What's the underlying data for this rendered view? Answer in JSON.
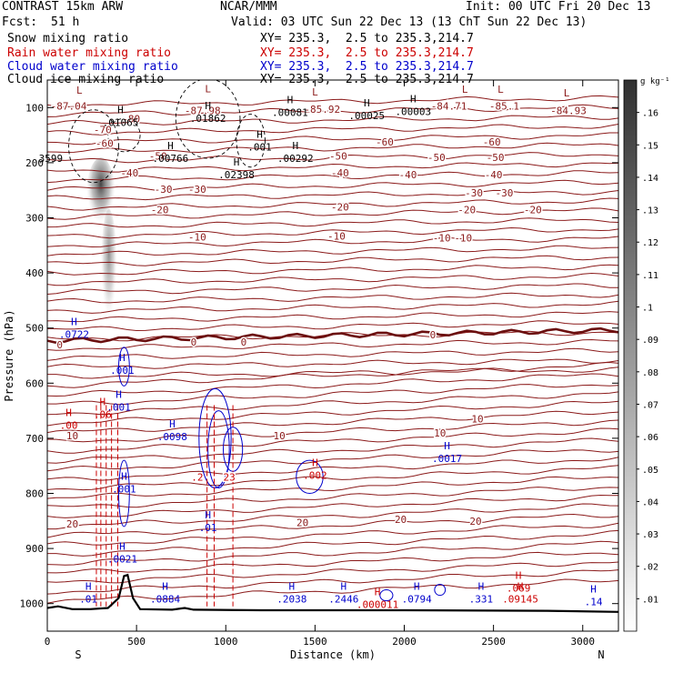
{
  "header": {
    "model": "CONTRAST 15km ARW",
    "center": "NCAR/MMM",
    "init": "Init: 00 UTC Fri 20 Dec 13",
    "fcst_label": "Fcst:",
    "fcst_value": "51 h",
    "valid": "Valid: 03 UTC Sun 22 Dec 13 (13 ChT Sun 22 Dec 13)",
    "fields": [
      {
        "name": "Snow mixing ratio",
        "color": "#000000",
        "xy": "XY= 235.3,  2.5 to 235.3,214.7"
      },
      {
        "name": "Rain water mixing ratio",
        "color": "#cc0000",
        "xy": "XY= 235.3,  2.5 to 235.3,214.7"
      },
      {
        "name": "Cloud water mixing ratio",
        "color": "#0000cc",
        "xy": "XY= 235.3,  2.5 to 235.3,214.7"
      },
      {
        "name": "Cloud ice mixing ratio",
        "color": "#000000",
        "xy": "XY= 235.3,  2.5 to 235.3,214.7"
      }
    ]
  },
  "chart_data": {
    "type": "cross-section contour",
    "xlabel": "Distance (km)",
    "ylabel": "Pressure (hPa)",
    "xlim": [
      0,
      3200
    ],
    "ylim": [
      1050,
      50
    ],
    "x_ticks": [
      0,
      500,
      1000,
      1500,
      2000,
      2500,
      3000
    ],
    "y_ticks": [
      100,
      200,
      300,
      400,
      500,
      600,
      700,
      800,
      900,
      1000
    ],
    "x_end_labels": {
      "left": "S",
      "right": "N"
    },
    "colorbar": {
      "unit": "g kg⁻¹",
      "ticks": [
        ".01",
        ".02",
        ".03",
        ".04",
        ".05",
        ".06",
        ".07",
        ".08",
        ".09",
        ".1",
        ".11",
        ".12",
        ".13",
        ".14",
        ".15",
        ".16"
      ],
      "min": 0,
      "max": 0.17
    },
    "temperature_contours": [
      {
        "label": "-80",
        "p": 112
      },
      {
        "label": "-60",
        "p": 160
      },
      {
        "label": "-50",
        "p": 185
      },
      {
        "label": "-40",
        "p": 210
      },
      {
        "label": "-30",
        "p": 238
      },
      {
        "label": "-20",
        "p": 275
      },
      {
        "label": "-10",
        "p": 330
      },
      {
        "label": "0",
        "p": 523
      },
      {
        "label": "10",
        "p": 715
      },
      {
        "label": "20",
        "p": 852
      }
    ],
    "contour_labels": [
      {
        "text": "-87.04",
        "x": 120,
        "p": 97,
        "color": "#8b1a1a"
      },
      {
        "text": "-80",
        "x": 470,
        "p": 120,
        "color": "#8b1a1a"
      },
      {
        "text": "-87.98",
        "x": 870,
        "p": 105,
        "color": "#8b1a1a"
      },
      {
        "text": "-85.92",
        "x": 1540,
        "p": 103,
        "color": "#8b1a1a"
      },
      {
        "text": "-84.71",
        "x": 2250,
        "p": 97,
        "color": "#8b1a1a"
      },
      {
        "text": "-85.1",
        "x": 2560,
        "p": 97,
        "color": "#8b1a1a"
      },
      {
        "text": "-84.93",
        "x": 2920,
        "p": 105,
        "color": "#8b1a1a"
      },
      {
        "text": "-70",
        "x": 310,
        "p": 140,
        "color": "#8b1a1a"
      },
      {
        "text": "-60",
        "x": 320,
        "p": 165,
        "color": "#8b1a1a"
      },
      {
        "text": "-60",
        "x": 1890,
        "p": 162,
        "color": "#8b1a1a"
      },
      {
        "text": "-60",
        "x": 2490,
        "p": 162,
        "color": "#8b1a1a"
      },
      {
        "text": "-50",
        "x": 620,
        "p": 188,
        "color": "#8b1a1a"
      },
      {
        "text": "-50",
        "x": 1630,
        "p": 188,
        "color": "#8b1a1a"
      },
      {
        "text": "-50",
        "x": 2180,
        "p": 190,
        "color": "#8b1a1a"
      },
      {
        "text": "-50",
        "x": 2510,
        "p": 190,
        "color": "#8b1a1a"
      },
      {
        "text": "-40",
        "x": 460,
        "p": 218,
        "color": "#8b1a1a"
      },
      {
        "text": "-40",
        "x": 1640,
        "p": 218,
        "color": "#8b1a1a"
      },
      {
        "text": "-40",
        "x": 2020,
        "p": 222,
        "color": "#8b1a1a"
      },
      {
        "text": "-40",
        "x": 2500,
        "p": 222,
        "color": "#8b1a1a"
      },
      {
        "text": "-30",
        "x": 650,
        "p": 248,
        "color": "#8b1a1a"
      },
      {
        "text": "-30",
        "x": 840,
        "p": 248,
        "color": "#8b1a1a"
      },
      {
        "text": "-30",
        "x": 2390,
        "p": 255,
        "color": "#8b1a1a"
      },
      {
        "text": "-30",
        "x": 2560,
        "p": 255,
        "color": "#8b1a1a"
      },
      {
        "text": "-20",
        "x": 630,
        "p": 285,
        "color": "#8b1a1a"
      },
      {
        "text": "-20",
        "x": 1640,
        "p": 280,
        "color": "#8b1a1a"
      },
      {
        "text": "-20",
        "x": 2350,
        "p": 285,
        "color": "#8b1a1a"
      },
      {
        "text": "-20",
        "x": 2720,
        "p": 285,
        "color": "#8b1a1a"
      },
      {
        "text": "-10",
        "x": 840,
        "p": 335,
        "color": "#8b1a1a"
      },
      {
        "text": "-10",
        "x": 1620,
        "p": 333,
        "color": "#8b1a1a"
      },
      {
        "text": "-10",
        "x": 2210,
        "p": 336,
        "color": "#8b1a1a"
      },
      {
        "text": "-10",
        "x": 2330,
        "p": 336,
        "color": "#8b1a1a"
      },
      {
        "text": "0",
        "x": 70,
        "p": 530,
        "color": "#8b1a1a"
      },
      {
        "text": "0",
        "x": 820,
        "p": 525,
        "color": "#8b1a1a"
      },
      {
        "text": "0",
        "x": 1100,
        "p": 525,
        "color": "#8b1a1a"
      },
      {
        "text": "0",
        "x": 2160,
        "p": 512,
        "color": "#8b1a1a"
      },
      {
        "text": "10",
        "x": 140,
        "p": 695,
        "color": "#8b1a1a"
      },
      {
        "text": "10",
        "x": 1300,
        "p": 695,
        "color": "#8b1a1a"
      },
      {
        "text": "10",
        "x": 2200,
        "p": 690,
        "color": "#8b1a1a"
      },
      {
        "text": "10",
        "x": 2410,
        "p": 665,
        "color": "#8b1a1a"
      },
      {
        "text": "20",
        "x": 140,
        "p": 855,
        "color": "#8b1a1a"
      },
      {
        "text": "20",
        "x": 1430,
        "p": 853,
        "color": "#8b1a1a"
      },
      {
        "text": "20",
        "x": 1980,
        "p": 847,
        "color": "#8b1a1a"
      },
      {
        "text": "20",
        "x": 2400,
        "p": 850,
        "color": "#8b1a1a"
      },
      {
        "text": "23",
        "x": 1020,
        "p": 770,
        "color": "#cc0000"
      },
      {
        "text": ".2",
        "x": 840,
        "p": 770,
        "color": "#cc0000"
      }
    ],
    "max_markers": [
      {
        "letter": "L",
        "text": "",
        "x": 180,
        "p": 85,
        "color": "#8b1a1a"
      },
      {
        "letter": "L",
        "text": "",
        "x": 900,
        "p": 82,
        "color": "#8b1a1a"
      },
      {
        "letter": "L",
        "text": "",
        "x": 1500,
        "p": 88,
        "color": "#8b1a1a"
      },
      {
        "letter": "L",
        "text": "",
        "x": 2340,
        "p": 83,
        "color": "#8b1a1a"
      },
      {
        "letter": "L",
        "text": "",
        "x": 2540,
        "p": 83,
        "color": "#8b1a1a"
      },
      {
        "letter": "L",
        "text": "",
        "x": 2910,
        "p": 90,
        "color": "#8b1a1a"
      },
      {
        "letter": "H",
        "text": ".01065",
        "x": 410,
        "p": 120,
        "color": "#000000"
      },
      {
        "letter": "H",
        "text": ".01862",
        "x": 900,
        "p": 113,
        "color": "#000000"
      },
      {
        "letter": "H",
        "text": ".00081",
        "x": 1360,
        "p": 102,
        "color": "#000000"
      },
      {
        "letter": "H",
        "text": ".00025",
        "x": 1790,
        "p": 108,
        "color": "#000000"
      },
      {
        "letter": "H",
        "text": ".00003",
        "x": 2050,
        "p": 100,
        "color": "#000000"
      },
      {
        "letter": "H",
        "text": ".001",
        "x": 1190,
        "p": 165,
        "color": "#000000"
      },
      {
        "letter": "H",
        "text": ".00292",
        "x": 1390,
        "p": 185,
        "color": "#000000"
      },
      {
        "letter": "H",
        "text": ".00766",
        "x": 690,
        "p": 185,
        "color": "#000000"
      },
      {
        "letter": "H",
        "text": ".02398",
        "x": 1060,
        "p": 215,
        "color": "#000000"
      },
      {
        "letter": "",
        "text": "3599",
        "x": 20,
        "p": 185,
        "color": "#000000"
      },
      {
        "letter": "H",
        "text": ".0722",
        "x": 150,
        "p": 505,
        "color": "#0000cc"
      },
      {
        "letter": "H",
        "text": ".001",
        "x": 420,
        "p": 570,
        "color": "#0000cc"
      },
      {
        "letter": "H",
        "text": ".001",
        "x": 400,
        "p": 637,
        "color": "#0000cc"
      },
      {
        "letter": "H",
        "text": ".06",
        "x": 310,
        "p": 650,
        "color": "#cc0000"
      },
      {
        "letter": "H",
        "text": ".0098",
        "x": 700,
        "p": 690,
        "color": "#0000cc"
      },
      {
        "letter": "H",
        "text": ".00",
        "x": 120,
        "p": 670,
        "color": "#cc0000"
      },
      {
        "letter": "H",
        "text": ".002",
        "x": 1500,
        "p": 760,
        "color": "#cc0000"
      },
      {
        "letter": "H",
        "text": ".0017",
        "x": 2240,
        "p": 730,
        "color": "#0000cc"
      },
      {
        "letter": "H",
        "text": ".001",
        "x": 430,
        "p": 785,
        "color": "#0000cc"
      },
      {
        "letter": "H",
        "text": ".0021",
        "x": 420,
        "p": 912,
        "color": "#0000cc"
      },
      {
        "letter": "H",
        "text": ".01",
        "x": 900,
        "p": 855,
        "color": "#0000cc"
      },
      {
        "letter": "H",
        "text": ".01",
        "x": 230,
        "p": 985,
        "color": "#0000cc"
      },
      {
        "letter": "H",
        "text": ".0884",
        "x": 660,
        "p": 985,
        "color": "#0000cc"
      },
      {
        "letter": "H",
        "text": ".2038",
        "x": 1370,
        "p": 985,
        "color": "#0000cc"
      },
      {
        "letter": "H",
        "text": ".2446",
        "x": 1660,
        "p": 985,
        "color": "#0000cc"
      },
      {
        "letter": "H",
        "text": ".000011",
        "x": 1850,
        "p": 995,
        "color": "#cc0000"
      },
      {
        "letter": "H",
        "text": ".0794",
        "x": 2070,
        "p": 985,
        "color": "#0000cc"
      },
      {
        "letter": "H",
        "text": ".331",
        "x": 2430,
        "p": 985,
        "color": "#0000cc"
      },
      {
        "letter": "H",
        "text": ".069",
        "x": 2640,
        "p": 965,
        "color": "#cc0000"
      },
      {
        "letter": "H",
        "text": ".09145",
        "x": 2650,
        "p": 985,
        "color": "#cc0000"
      },
      {
        "letter": "H",
        "text": ".14",
        "x": 3060,
        "p": 990,
        "color": "#0000cc"
      }
    ],
    "terrain": [
      [
        0,
        1008
      ],
      [
        60,
        1005
      ],
      [
        140,
        1010
      ],
      [
        240,
        1010
      ],
      [
        340,
        1008
      ],
      [
        400,
        990
      ],
      [
        430,
        950
      ],
      [
        450,
        948
      ],
      [
        480,
        990
      ],
      [
        520,
        1010
      ],
      [
        700,
        1011
      ],
      [
        770,
        1008
      ],
      [
        820,
        1011
      ],
      [
        1200,
        1012
      ],
      [
        2000,
        1012
      ],
      [
        2800,
        1013
      ],
      [
        3200,
        1015
      ]
    ]
  }
}
